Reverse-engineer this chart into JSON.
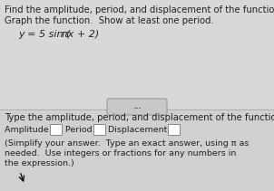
{
  "bg_color_top": "#d8d8d8",
  "bg_color_bottom": "#d0d0d0",
  "line1": "Find the amplitude, period, and displacement of the function.",
  "line2": "Graph the function.  Show at least one period.",
  "equation": "y = 5 sin (πx + 2)",
  "divider_text": "...",
  "type_line": "Type the amplitude, period, and displacement of the function.",
  "amp_label": "Amplitude = ",
  "per_label": "Period = ",
  "disp_label": "Displacement = ",
  "note1": "(Simplify your answer.  Type an exact answer, using π as",
  "note2": "needed.  Use integers or fractions for any numbers in",
  "note3": "the expression.)",
  "text_color": "#222222",
  "box_color": "#ffffff",
  "box_edge": "#888888",
  "divider_line_color": "#aaaaaa",
  "divider_btn_color": "#c8c8c8",
  "fs_main": 7.2,
  "fs_eq": 8.0,
  "fs_note": 6.8
}
